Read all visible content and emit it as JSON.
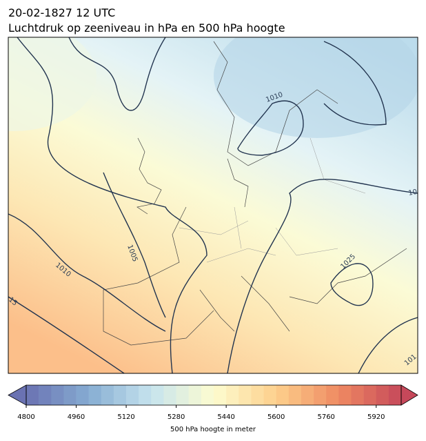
{
  "header": {
    "date": "20-02-1827 12 UTC",
    "title": "Luchtdruk op zeeniveau in hPa en 500 hPa hoogte"
  },
  "contour_labels": [
    "1010",
    "1005",
    "1010",
    "1025",
    "15",
    "10",
    "101"
  ],
  "colorbar": {
    "label": "500 hPa hoogte in meter",
    "range": [
      4800,
      6000
    ],
    "step": 40,
    "ticks": [
      4800,
      4960,
      5120,
      5280,
      5440,
      5600,
      5760,
      5920
    ],
    "colormap": [
      "#6a72b2",
      "#86acd2",
      "#c6e3ee",
      "#fdfcd0",
      "#fdd08c",
      "#ef8a62",
      "#c6485a"
    ]
  }
}
